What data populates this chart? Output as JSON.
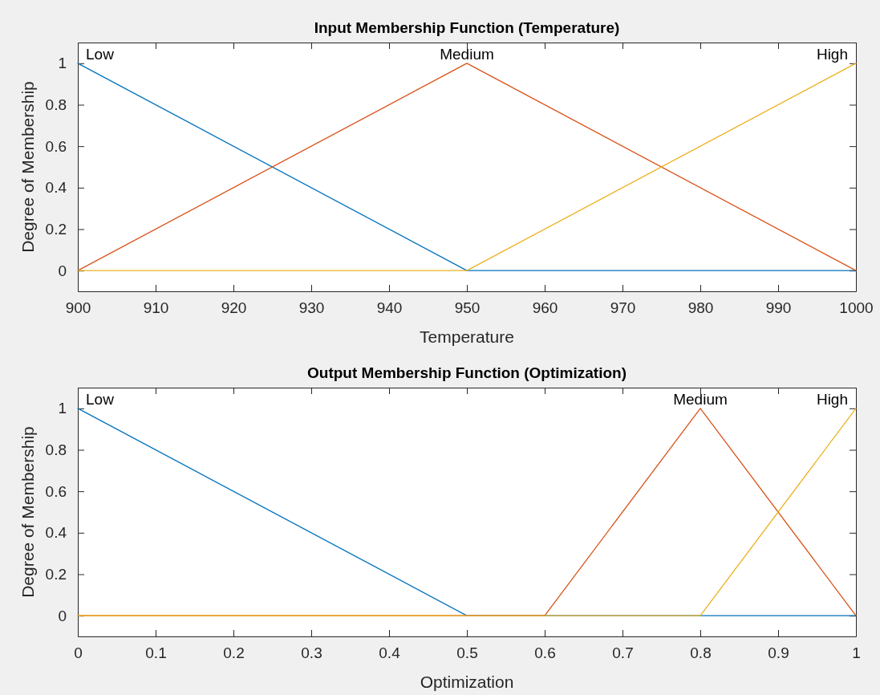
{
  "chart_data": [
    {
      "type": "line",
      "title": "Input Membership Function (Temperature)",
      "xlabel": "Temperature",
      "ylabel": "Degree of Membership",
      "xlim": [
        900,
        1000
      ],
      "xticks": [
        900,
        910,
        920,
        930,
        940,
        950,
        960,
        970,
        980,
        990,
        1000
      ],
      "ylim": [
        -0.1,
        1.1
      ],
      "yticks": [
        0,
        0.2,
        0.4,
        0.6,
        0.8,
        1
      ],
      "grid": false,
      "series": [
        {
          "name": "Low",
          "color": "#0072bd",
          "x": [
            900,
            950,
            1000
          ],
          "values": [
            1,
            0,
            0
          ]
        },
        {
          "name": "Medium",
          "color": "#d95319",
          "x": [
            900,
            950,
            1000
          ],
          "values": [
            0,
            1,
            0
          ]
        },
        {
          "name": "High",
          "color": "#edb120",
          "x": [
            900,
            950,
            1000
          ],
          "values": [
            0,
            0,
            1
          ]
        }
      ]
    },
    {
      "type": "line",
      "title": "Output Membership Function (Optimization)",
      "xlabel": "Optimization",
      "ylabel": "Degree of Membership",
      "xlim": [
        0,
        1
      ],
      "xticks": [
        0,
        0.1,
        0.2,
        0.3,
        0.4,
        0.5,
        0.6,
        0.7,
        0.8,
        0.9,
        1
      ],
      "ylim": [
        -0.1,
        1.1
      ],
      "yticks": [
        0,
        0.2,
        0.4,
        0.6,
        0.8,
        1
      ],
      "grid": false,
      "series": [
        {
          "name": "Low",
          "color": "#0072bd",
          "x": [
            0,
            0.5,
            1
          ],
          "values": [
            1,
            0,
            0
          ]
        },
        {
          "name": "Medium",
          "color": "#d95319",
          "x": [
            0,
            0.6,
            0.8,
            1
          ],
          "values": [
            0,
            0,
            1,
            0
          ]
        },
        {
          "name": "High",
          "color": "#edb120",
          "x": [
            0,
            0.8,
            1
          ],
          "values": [
            0,
            0,
            1
          ]
        }
      ]
    }
  ]
}
